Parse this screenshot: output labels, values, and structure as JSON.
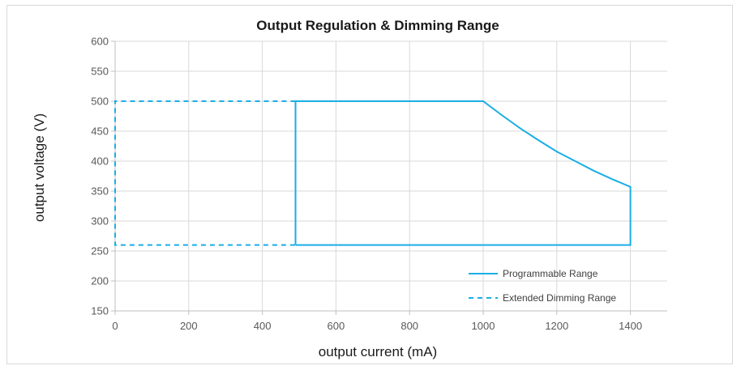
{
  "chart_data": {
    "type": "line",
    "title": "Output Regulation & Dimming Range",
    "xlabel": "output current (mA)",
    "ylabel": "output voltage (V)",
    "xlim": [
      0,
      1500
    ],
    "ylim": [
      150,
      600
    ],
    "xticks": [
      0,
      200,
      400,
      600,
      800,
      1000,
      1200,
      1400
    ],
    "yticks": [
      150,
      200,
      250,
      300,
      350,
      400,
      450,
      500,
      550,
      600
    ],
    "grid": true,
    "legend_position": "bottom-right",
    "line_color": "#1aaee5",
    "series": [
      {
        "name": "Programmable Range",
        "style": "solid",
        "x": [
          490,
          490,
          1000,
          1050,
          1100,
          1150,
          1200,
          1250,
          1300,
          1350,
          1400,
          1400,
          490
        ],
        "y": [
          260,
          500,
          500,
          477,
          455,
          435,
          416,
          400,
          384,
          370,
          357,
          260,
          260
        ]
      },
      {
        "name": "Extended Dimming Range",
        "style": "dashed",
        "x": [
          490,
          0,
          0,
          490
        ],
        "y": [
          500,
          500,
          260,
          260
        ]
      }
    ]
  }
}
